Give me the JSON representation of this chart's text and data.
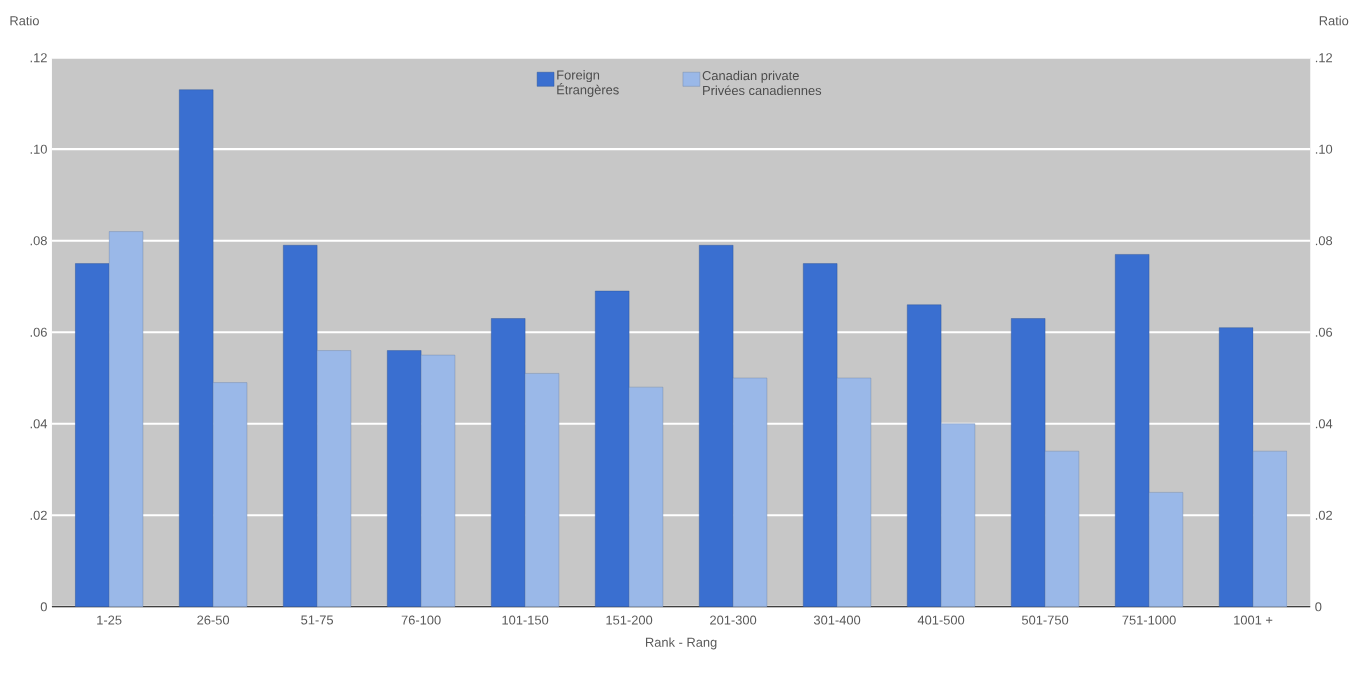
{
  "chart_data": {
    "type": "bar",
    "xlabel": "Rank - Rang",
    "ylabel": "Ratio",
    "y2label": "Ratio",
    "categories": [
      "1-25",
      "26-50",
      "51-75",
      "76-100",
      "101-150",
      "151-200",
      "201-300",
      "301-400",
      "401-500",
      "501-750",
      "751-1000",
      "1001 +"
    ],
    "series": [
      {
        "name": "Foreign Étrangères",
        "color": "#3a6fd0",
        "values": [
          0.075,
          0.113,
          0.079,
          0.056,
          0.063,
          0.069,
          0.079,
          0.075,
          0.066,
          0.063,
          0.077,
          0.061
        ]
      },
      {
        "name": "Canadian private Privées canadiennes",
        "color": "#9ab8e8",
        "values": [
          0.082,
          0.049,
          0.056,
          0.055,
          0.051,
          0.048,
          0.05,
          0.05,
          0.04,
          0.034,
          0.025,
          0.034
        ]
      }
    ],
    "ylim": [
      0,
      0.12
    ],
    "yticks": [
      {
        "value": 0,
        "label": "0"
      },
      {
        "value": 0.02,
        "label": ".02"
      },
      {
        "value": 0.04,
        "label": ".04"
      },
      {
        "value": 0.06,
        "label": ".06"
      },
      {
        "value": 0.08,
        "label": ".08"
      },
      {
        "value": 0.1,
        "label": ".10"
      },
      {
        "value": 0.12,
        "label": ".12"
      }
    ],
    "y2lim": [
      0,
      0.12
    ],
    "y2ticks": [
      {
        "value": 0,
        "label": "0"
      },
      {
        "value": 0.02,
        "label": ".02"
      },
      {
        "value": 0.04,
        "label": ".04"
      },
      {
        "value": 0.06,
        "label": ".06"
      },
      {
        "value": 0.08,
        "label": ".08"
      },
      {
        "value": 0.1,
        "label": ".10"
      },
      {
        "value": 0.12,
        "label": ".12"
      }
    ],
    "grid": "y",
    "legend": "top"
  }
}
